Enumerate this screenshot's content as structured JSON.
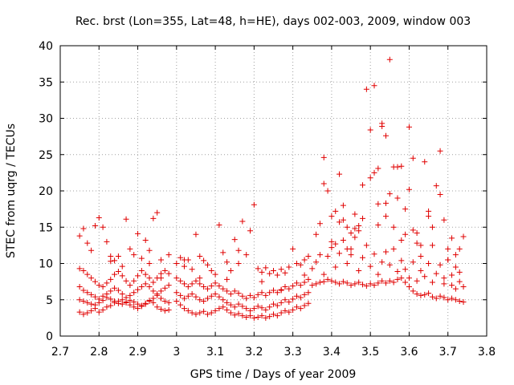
{
  "chart_data": {
    "type": "scatter",
    "title": "Rec. brst (Lon=355, Lat=48, h=HE), days 002-003, 2009, window 003",
    "xlabel": "GPS time / Days of year 2009",
    "ylabel": "STEC from uqrg / TECUs",
    "xlim": [
      2.7,
      3.8
    ],
    "ylim": [
      0,
      40
    ],
    "xticks": [
      "2.7",
      "2.8",
      "2.9",
      "3",
      "3.1",
      "3.2",
      "3.3",
      "3.4",
      "3.5",
      "3.6",
      "3.7",
      "3.8"
    ],
    "yticks": [
      "0",
      "5",
      "10",
      "15",
      "20",
      "25",
      "30",
      "35",
      "40"
    ],
    "grid": true,
    "marker": "+",
    "color": "#e00000",
    "points": [
      [
        2.75,
        3.3
      ],
      [
        2.76,
        3.0
      ],
      [
        2.77,
        3.2
      ],
      [
        2.78,
        3.5
      ],
      [
        2.79,
        3.8
      ],
      [
        2.8,
        3.3
      ],
      [
        2.81,
        3.6
      ],
      [
        2.82,
        4.0
      ],
      [
        2.83,
        4.2
      ],
      [
        2.84,
        4.6
      ],
      [
        2.85,
        4.8
      ],
      [
        2.86,
        5.0
      ],
      [
        2.87,
        4.7
      ],
      [
        2.88,
        4.3
      ],
      [
        2.89,
        4.0
      ],
      [
        2.9,
        3.8
      ],
      [
        2.91,
        4.1
      ],
      [
        2.92,
        4.5
      ],
      [
        2.93,
        4.9
      ],
      [
        2.94,
        4.6
      ],
      [
        2.95,
        4.0
      ],
      [
        2.96,
        3.7
      ],
      [
        2.97,
        3.5
      ],
      [
        2.98,
        3.6
      ],
      [
        2.75,
        5.0
      ],
      [
        2.76,
        4.8
      ],
      [
        2.77,
        4.6
      ],
      [
        2.78,
        4.4
      ],
      [
        2.79,
        4.3
      ],
      [
        2.8,
        4.6
      ],
      [
        2.81,
        4.9
      ],
      [
        2.82,
        5.3
      ],
      [
        2.83,
        5.1
      ],
      [
        2.84,
        4.8
      ],
      [
        2.85,
        4.5
      ],
      [
        2.86,
        4.4
      ],
      [
        2.87,
        4.6
      ],
      [
        2.88,
        4.9
      ],
      [
        2.89,
        4.7
      ],
      [
        2.9,
        4.4
      ],
      [
        2.91,
        4.2
      ],
      [
        2.92,
        4.4
      ],
      [
        2.93,
        4.8
      ],
      [
        2.94,
        5.2
      ],
      [
        2.95,
        5.6
      ],
      [
        2.96,
        5.2
      ],
      [
        2.97,
        4.8
      ],
      [
        2.98,
        4.6
      ],
      [
        2.75,
        6.8
      ],
      [
        2.76,
        6.3
      ],
      [
        2.77,
        6.0
      ],
      [
        2.78,
        5.7
      ],
      [
        2.79,
        5.4
      ],
      [
        2.8,
        5.1
      ],
      [
        2.81,
        5.5
      ],
      [
        2.82,
        5.8
      ],
      [
        2.83,
        6.2
      ],
      [
        2.84,
        6.6
      ],
      [
        2.85,
        6.3
      ],
      [
        2.86,
        5.8
      ],
      [
        2.87,
        5.3
      ],
      [
        2.88,
        5.6
      ],
      [
        2.89,
        6.0
      ],
      [
        2.9,
        6.4
      ],
      [
        2.91,
        6.8
      ],
      [
        2.92,
        7.2
      ],
      [
        2.93,
        6.8
      ],
      [
        2.94,
        6.2
      ],
      [
        2.95,
        5.8
      ],
      [
        2.96,
        6.2
      ],
      [
        2.97,
        6.6
      ],
      [
        2.98,
        7.0
      ],
      [
        2.75,
        9.3
      ],
      [
        2.76,
        9.0
      ],
      [
        2.77,
        8.5
      ],
      [
        2.78,
        8.0
      ],
      [
        2.79,
        7.5
      ],
      [
        2.8,
        7.0
      ],
      [
        2.81,
        6.8
      ],
      [
        2.82,
        7.3
      ],
      [
        2.83,
        7.8
      ],
      [
        2.84,
        8.5
      ],
      [
        2.85,
        8.9
      ],
      [
        2.86,
        8.3
      ],
      [
        2.87,
        7.6
      ],
      [
        2.88,
        7.0
      ],
      [
        2.89,
        7.6
      ],
      [
        2.9,
        8.3
      ],
      [
        2.91,
        9.0
      ],
      [
        2.92,
        8.5
      ],
      [
        2.93,
        8.0
      ],
      [
        2.94,
        7.4
      ],
      [
        2.95,
        8.0
      ],
      [
        2.96,
        8.6
      ],
      [
        2.97,
        9.0
      ],
      [
        2.98,
        8.6
      ],
      [
        2.75,
        13.8
      ],
      [
        2.76,
        14.8
      ],
      [
        2.77,
        12.8
      ],
      [
        2.78,
        11.8
      ],
      [
        2.79,
        15.2
      ],
      [
        2.8,
        16.3
      ],
      [
        2.81,
        15.0
      ],
      [
        2.82,
        13.0
      ],
      [
        2.83,
        11.0
      ],
      [
        2.84,
        10.4
      ],
      [
        2.86,
        9.6
      ],
      [
        2.87,
        16.1
      ],
      [
        2.88,
        12.0
      ],
      [
        2.89,
        11.2
      ],
      [
        2.9,
        14.1
      ],
      [
        2.91,
        10.7
      ],
      [
        2.92,
        13.2
      ],
      [
        2.93,
        11.8
      ],
      [
        2.94,
        16.2
      ],
      [
        2.95,
        17.0
      ],
      [
        2.96,
        10.5
      ],
      [
        2.98,
        11.2
      ],
      [
        3.0,
        4.8
      ],
      [
        3.01,
        4.3
      ],
      [
        3.02,
        3.8
      ],
      [
        3.03,
        3.5
      ],
      [
        3.04,
        3.2
      ],
      [
        3.05,
        3.0
      ],
      [
        3.06,
        3.2
      ],
      [
        3.07,
        3.4
      ],
      [
        3.08,
        3.0
      ],
      [
        3.09,
        3.2
      ],
      [
        3.1,
        3.5
      ],
      [
        3.11,
        3.8
      ],
      [
        3.12,
        4.0
      ],
      [
        3.13,
        3.6
      ],
      [
        3.14,
        3.2
      ],
      [
        3.15,
        2.9
      ],
      [
        3.16,
        3.1
      ],
      [
        3.17,
        2.8
      ],
      [
        3.18,
        2.6
      ],
      [
        3.19,
        2.8
      ],
      [
        3.2,
        2.5
      ],
      [
        3.21,
        2.6
      ],
      [
        3.22,
        2.8
      ],
      [
        3.23,
        2.5
      ],
      [
        3.24,
        2.7
      ],
      [
        3.25,
        3.0
      ],
      [
        3.26,
        2.8
      ],
      [
        3.27,
        3.2
      ],
      [
        3.28,
        3.5
      ],
      [
        3.29,
        3.3
      ],
      [
        3.3,
        3.6
      ],
      [
        3.31,
        4.0
      ],
      [
        3.32,
        3.8
      ],
      [
        3.33,
        4.2
      ],
      [
        3.34,
        4.5
      ],
      [
        3.0,
        6.0
      ],
      [
        3.01,
        5.6
      ],
      [
        3.02,
        5.2
      ],
      [
        3.03,
        5.5
      ],
      [
        3.04,
        5.8
      ],
      [
        3.05,
        5.4
      ],
      [
        3.06,
        5.0
      ],
      [
        3.07,
        4.8
      ],
      [
        3.08,
        5.2
      ],
      [
        3.09,
        5.5
      ],
      [
        3.1,
        5.8
      ],
      [
        3.11,
        5.4
      ],
      [
        3.12,
        5.0
      ],
      [
        3.13,
        4.6
      ],
      [
        3.14,
        4.3
      ],
      [
        3.15,
        4.0
      ],
      [
        3.16,
        4.4
      ],
      [
        3.17,
        4.1
      ],
      [
        3.18,
        3.8
      ],
      [
        3.19,
        3.5
      ],
      [
        3.2,
        3.8
      ],
      [
        3.21,
        4.1
      ],
      [
        3.22,
        3.9
      ],
      [
        3.23,
        3.6
      ],
      [
        3.24,
        4.0
      ],
      [
        3.25,
        4.4
      ],
      [
        3.26,
        4.2
      ],
      [
        3.27,
        4.6
      ],
      [
        3.28,
        5.0
      ],
      [
        3.29,
        4.7
      ],
      [
        3.3,
        5.1
      ],
      [
        3.31,
        5.5
      ],
      [
        3.32,
        5.3
      ],
      [
        3.33,
        5.7
      ],
      [
        3.34,
        6.0
      ],
      [
        3.0,
        8.0
      ],
      [
        3.01,
        7.6
      ],
      [
        3.02,
        7.2
      ],
      [
        3.03,
        6.8
      ],
      [
        3.04,
        7.2
      ],
      [
        3.05,
        7.6
      ],
      [
        3.06,
        7.2
      ],
      [
        3.07,
        6.8
      ],
      [
        3.08,
        6.5
      ],
      [
        3.09,
        6.9
      ],
      [
        3.1,
        7.3
      ],
      [
        3.11,
        6.9
      ],
      [
        3.12,
        6.5
      ],
      [
        3.13,
        6.2
      ],
      [
        3.14,
        5.8
      ],
      [
        3.15,
        6.2
      ],
      [
        3.16,
        5.9
      ],
      [
        3.17,
        5.5
      ],
      [
        3.18,
        5.2
      ],
      [
        3.19,
        5.6
      ],
      [
        3.2,
        5.3
      ],
      [
        3.21,
        5.7
      ],
      [
        3.22,
        6.0
      ],
      [
        3.23,
        5.6
      ],
      [
        3.24,
        6.0
      ],
      [
        3.25,
        6.3
      ],
      [
        3.26,
        6.0
      ],
      [
        3.27,
        6.4
      ],
      [
        3.28,
        6.8
      ],
      [
        3.29,
        6.5
      ],
      [
        3.3,
        6.9
      ],
      [
        3.31,
        7.3
      ],
      [
        3.32,
        7.0
      ],
      [
        3.33,
        7.4
      ],
      [
        3.34,
        7.8
      ],
      [
        3.0,
        10.0
      ],
      [
        3.01,
        10.8
      ],
      [
        3.02,
        9.6
      ],
      [
        3.03,
        10.5
      ],
      [
        3.04,
        9.2
      ],
      [
        3.05,
        14.0
      ],
      [
        3.06,
        11.0
      ],
      [
        3.07,
        10.4
      ],
      [
        3.08,
        9.8
      ],
      [
        3.09,
        9.0
      ],
      [
        3.1,
        8.5
      ],
      [
        3.11,
        15.3
      ],
      [
        3.12,
        11.5
      ],
      [
        3.13,
        10.2
      ],
      [
        3.14,
        9.0
      ],
      [
        3.15,
        13.3
      ],
      [
        3.16,
        10.0
      ],
      [
        3.17,
        15.8
      ],
      [
        3.18,
        11.2
      ],
      [
        3.19,
        14.5
      ],
      [
        3.2,
        18.1
      ],
      [
        3.21,
        9.3
      ],
      [
        3.22,
        8.8
      ],
      [
        3.23,
        9.4
      ],
      [
        3.24,
        8.6
      ],
      [
        3.25,
        9.0
      ],
      [
        3.26,
        8.4
      ],
      [
        3.27,
        9.2
      ],
      [
        3.28,
        8.7
      ],
      [
        3.29,
        9.5
      ],
      [
        3.3,
        12.0
      ],
      [
        3.31,
        10.0
      ],
      [
        3.32,
        9.8
      ],
      [
        3.33,
        10.5
      ],
      [
        3.34,
        11.0
      ],
      [
        3.35,
        7.0
      ],
      [
        3.36,
        7.2
      ],
      [
        3.37,
        7.4
      ],
      [
        3.38,
        7.5
      ],
      [
        3.39,
        7.8
      ],
      [
        3.4,
        7.6
      ],
      [
        3.41,
        7.4
      ],
      [
        3.42,
        7.2
      ],
      [
        3.43,
        7.5
      ],
      [
        3.44,
        7.3
      ],
      [
        3.45,
        7.0
      ],
      [
        3.46,
        7.2
      ],
      [
        3.47,
        7.4
      ],
      [
        3.48,
        7.1
      ],
      [
        3.49,
        6.9
      ],
      [
        3.5,
        7.2
      ],
      [
        3.51,
        7.0
      ],
      [
        3.52,
        7.3
      ],
      [
        3.53,
        7.6
      ],
      [
        3.54,
        7.3
      ],
      [
        3.55,
        7.6
      ],
      [
        3.56,
        7.4
      ],
      [
        3.57,
        7.8
      ],
      [
        3.58,
        8.0
      ],
      [
        3.59,
        7.4
      ],
      [
        3.6,
        6.8
      ],
      [
        3.61,
        6.2
      ],
      [
        3.62,
        5.8
      ],
      [
        3.63,
        5.6
      ],
      [
        3.64,
        5.7
      ],
      [
        3.65,
        5.9
      ],
      [
        3.66,
        5.4
      ],
      [
        3.67,
        5.2
      ],
      [
        3.68,
        5.5
      ],
      [
        3.69,
        5.3
      ],
      [
        3.7,
        5.0
      ],
      [
        3.71,
        5.2
      ],
      [
        3.72,
        5.0
      ],
      [
        3.73,
        4.8
      ],
      [
        3.74,
        4.7
      ],
      [
        3.35,
        9.3
      ],
      [
        3.36,
        10.2
      ],
      [
        3.37,
        11.2
      ],
      [
        3.38,
        8.5
      ],
      [
        3.39,
        11.0
      ],
      [
        3.4,
        12.2
      ],
      [
        3.41,
        9.5
      ],
      [
        3.42,
        11.4
      ],
      [
        3.43,
        13.2
      ],
      [
        3.44,
        10.0
      ],
      [
        3.45,
        12.0
      ],
      [
        3.46,
        13.6
      ],
      [
        3.47,
        9.0
      ],
      [
        3.48,
        10.8
      ],
      [
        3.49,
        12.5
      ],
      [
        3.5,
        9.6
      ],
      [
        3.51,
        11.3
      ],
      [
        3.52,
        8.5
      ],
      [
        3.53,
        10.2
      ],
      [
        3.54,
        11.6
      ],
      [
        3.55,
        9.8
      ],
      [
        3.56,
        12.0
      ],
      [
        3.57,
        8.9
      ],
      [
        3.58,
        10.4
      ],
      [
        3.59,
        9.2
      ],
      [
        3.6,
        8.0
      ],
      [
        3.61,
        10.2
      ],
      [
        3.62,
        7.6
      ],
      [
        3.63,
        9.0
      ],
      [
        3.64,
        8.2
      ],
      [
        3.65,
        10.0
      ],
      [
        3.66,
        7.4
      ],
      [
        3.67,
        8.6
      ],
      [
        3.68,
        9.8
      ],
      [
        3.69,
        7.2
      ],
      [
        3.7,
        10.5
      ],
      [
        3.71,
        8.4
      ],
      [
        3.72,
        6.5
      ],
      [
        3.73,
        8.8
      ],
      [
        3.74,
        6.8
      ],
      [
        3.36,
        14.0
      ],
      [
        3.37,
        15.5
      ],
      [
        3.38,
        24.6
      ],
      [
        3.39,
        20.0
      ],
      [
        3.4,
        16.5
      ],
      [
        3.41,
        17.2
      ],
      [
        3.42,
        22.3
      ],
      [
        3.43,
        18.0
      ],
      [
        3.44,
        15.0
      ],
      [
        3.45,
        14.2
      ],
      [
        3.46,
        16.8
      ],
      [
        3.47,
        15.2
      ],
      [
        3.48,
        20.8
      ],
      [
        3.49,
        34.0
      ],
      [
        3.5,
        28.4
      ],
      [
        3.51,
        22.5
      ],
      [
        3.52,
        18.2
      ],
      [
        3.53,
        29.3
      ],
      [
        3.54,
        27.6
      ],
      [
        3.55,
        38.1
      ],
      [
        3.56,
        23.3
      ],
      [
        3.57,
        19.0
      ],
      [
        3.58,
        23.4
      ],
      [
        3.59,
        17.5
      ],
      [
        3.6,
        28.8
      ],
      [
        3.61,
        24.5
      ],
      [
        3.62,
        14.2
      ],
      [
        3.63,
        12.5
      ],
      [
        3.64,
        24.0
      ],
      [
        3.65,
        17.2
      ],
      [
        3.66,
        15.0
      ],
      [
        3.67,
        20.7
      ],
      [
        3.68,
        25.5
      ],
      [
        3.69,
        16.0
      ],
      [
        3.7,
        12.0
      ],
      [
        3.71,
        13.5
      ],
      [
        3.72,
        11.2
      ],
      [
        3.73,
        12.0
      ],
      [
        3.74,
        13.7
      ],
      [
        3.38,
        21.0
      ],
      [
        3.4,
        13.0
      ],
      [
        3.42,
        15.7
      ],
      [
        3.44,
        12.0
      ],
      [
        3.46,
        14.8
      ],
      [
        3.48,
        16.2
      ],
      [
        3.5,
        21.8
      ],
      [
        3.51,
        34.5
      ],
      [
        3.52,
        15.3
      ],
      [
        3.53,
        28.9
      ],
      [
        3.54,
        16.5
      ],
      [
        3.55,
        19.6
      ],
      [
        3.56,
        15.0
      ],
      [
        3.57,
        23.3
      ],
      [
        3.59,
        14.0
      ],
      [
        3.6,
        20.2
      ],
      [
        3.62,
        12.8
      ],
      [
        3.65,
        16.5
      ],
      [
        3.68,
        19.5
      ],
      [
        3.7,
        10.5
      ],
      [
        3.72,
        9.5
      ],
      [
        2.83,
        10.3
      ],
      [
        2.85,
        11.0
      ],
      [
        2.93,
        10.0
      ],
      [
        2.96,
        8.0
      ],
      [
        3.02,
        10.5
      ],
      [
        3.06,
        8.0
      ],
      [
        3.13,
        7.8
      ],
      [
        3.16,
        11.8
      ],
      [
        3.22,
        7.5
      ],
      [
        3.27,
        6.3
      ],
      [
        3.33,
        8.4
      ],
      [
        3.41,
        12.7
      ],
      [
        3.43,
        16.0
      ],
      [
        3.45,
        11.2
      ],
      [
        3.47,
        14.5
      ],
      [
        3.52,
        23.1
      ],
      [
        3.54,
        18.3
      ],
      [
        3.58,
        13.2
      ],
      [
        3.61,
        14.6
      ],
      [
        3.63,
        11.0
      ],
      [
        3.66,
        12.5
      ],
      [
        3.69,
        8.0
      ],
      [
        3.71,
        7.0
      ],
      [
        3.73,
        7.5
      ]
    ]
  }
}
